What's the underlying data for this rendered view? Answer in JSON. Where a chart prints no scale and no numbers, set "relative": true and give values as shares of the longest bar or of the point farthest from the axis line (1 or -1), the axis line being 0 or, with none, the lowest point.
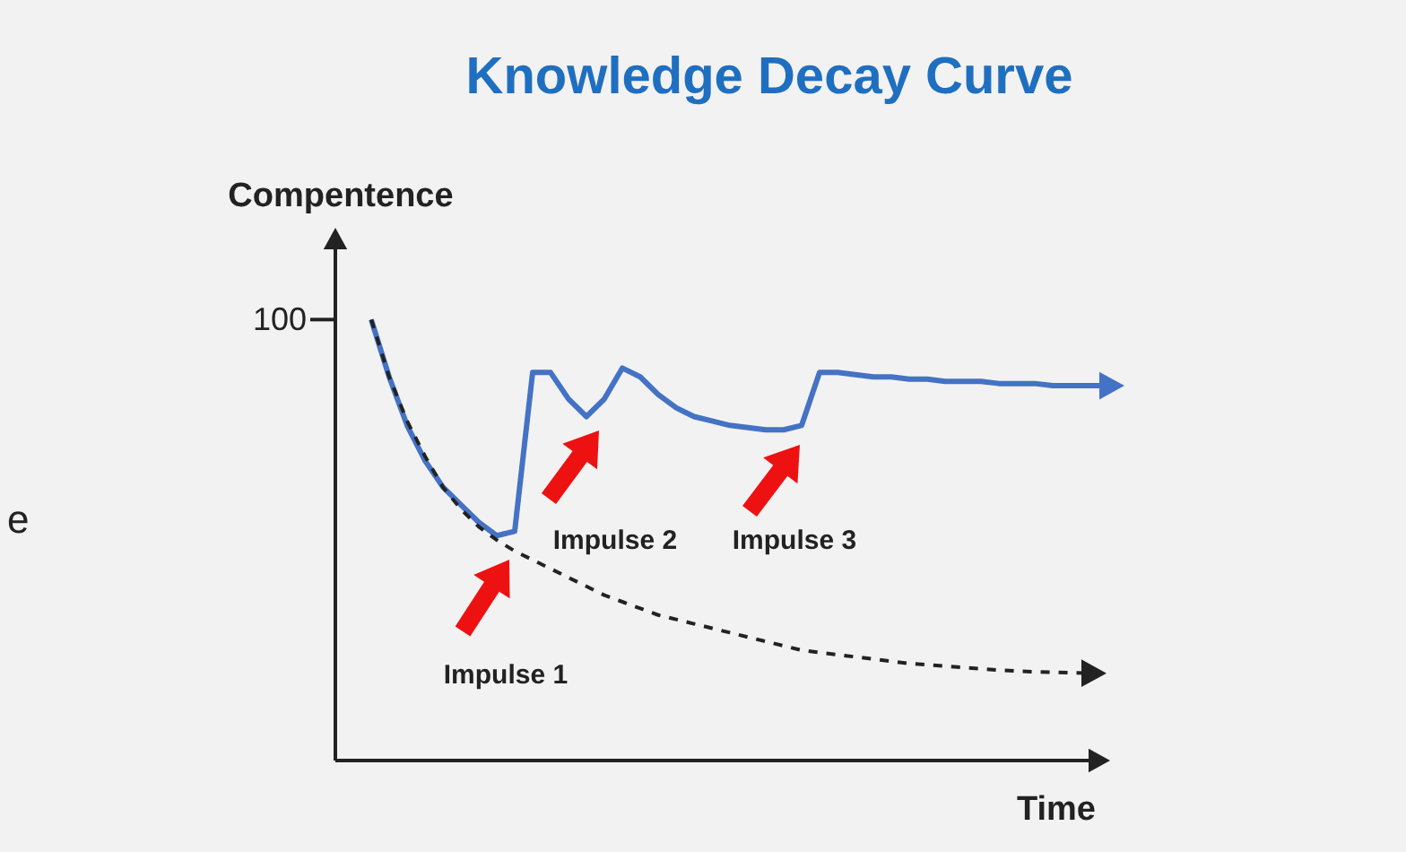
{
  "chart_data": {
    "type": "line",
    "title": "Knowledge Decay Curve",
    "xlabel": "Time",
    "ylabel": "Compentence",
    "relative": true,
    "marker": "none",
    "grid": false,
    "legend": false,
    "categories": [
      null,
      null,
      null,
      null,
      null,
      null,
      null,
      null,
      null,
      null,
      null,
      null,
      null,
      null,
      null,
      null,
      null,
      null,
      null,
      null,
      null,
      null,
      null,
      null,
      null,
      null,
      null,
      null,
      null,
      null,
      null,
      null,
      null,
      null,
      null,
      null,
      null,
      null,
      null,
      null,
      null,
      null
    ],
    "series": [
      {
        "color": "#4472c4",
        "line_style": "solid",
        "values": [
          1,
          0.87,
          0.76,
          0.68,
          0.62,
          0.58,
          0.54,
          0.51,
          0.52,
          0.88,
          0.88,
          0.82,
          0.78,
          0.82,
          0.89,
          0.87,
          0.83,
          0.8,
          0.78,
          0.77,
          0.76,
          0.755,
          0.75,
          0.75,
          0.76,
          0.88,
          0.88,
          0.875,
          0.87,
          0.87,
          0.865,
          0.865,
          0.86,
          0.86,
          0.86,
          0.855,
          0.855,
          0.855,
          0.85,
          0.85,
          0.85,
          0.85
        ]
      },
      {
        "color": "#222222",
        "line_style": "dashed",
        "values": [
          1,
          0.87,
          0.77,
          0.69,
          0.62,
          0.57,
          0.53,
          0.5,
          0.475,
          0.455,
          0.435,
          0.415,
          0.395,
          0.375,
          0.36,
          0.345,
          0.33,
          0.32,
          0.31,
          0.3,
          0.29,
          0.28,
          0.27,
          0.26,
          0.25,
          0.245,
          0.24,
          0.235,
          0.23,
          0.225,
          0.22,
          0.217,
          0.214,
          0.211,
          0.208,
          0.205,
          0.203,
          0.201,
          0.2,
          0.199,
          0.198,
          null
        ]
      }
    ],
    "annotations": [
      "100",
      "Impulse 1",
      "Impulse 2",
      "Impulse 3",
      "e"
    ]
  }
}
